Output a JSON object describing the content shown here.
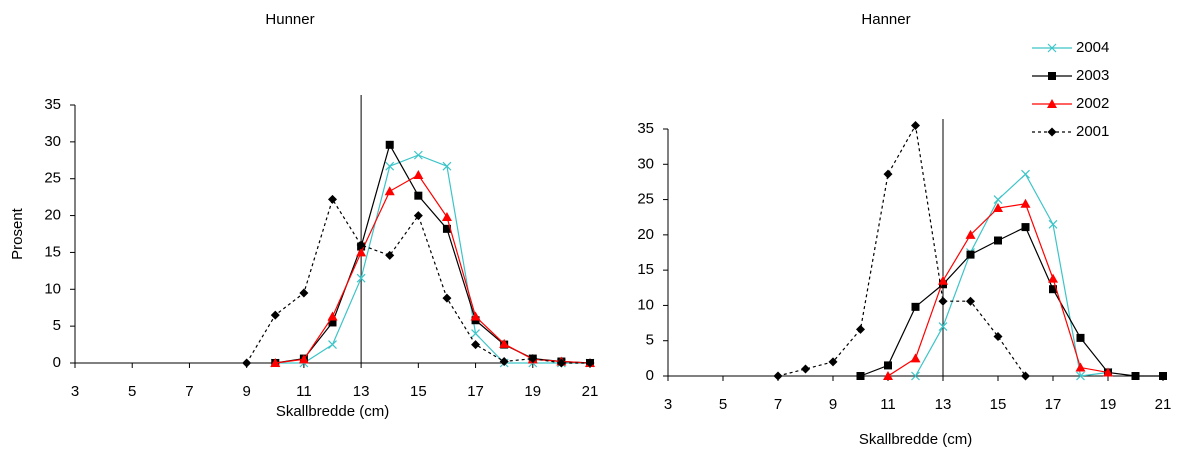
{
  "chart_data": [
    {
      "type": "line",
      "title": "Hunner",
      "xlabel": "Skallbredde (cm)",
      "ylabel": "Prosent",
      "x": [
        3,
        4,
        5,
        6,
        7,
        8,
        9,
        10,
        11,
        12,
        13,
        14,
        15,
        16,
        17,
        18,
        19,
        20,
        21
      ],
      "xlim": [
        3,
        21
      ],
      "xticks": [
        3,
        5,
        7,
        9,
        11,
        13,
        15,
        17,
        19,
        21
      ],
      "ylim": [
        0,
        35
      ],
      "yticks": [
        0,
        5,
        10,
        15,
        20,
        25,
        30,
        35
      ],
      "vline": 13,
      "series": [
        {
          "color": "#3cc4c8",
          "marker": "x",
          "dash": "solid",
          "values": [
            null,
            null,
            null,
            null,
            null,
            null,
            null,
            0,
            0,
            2.5,
            11.5,
            26.7,
            28.2,
            26.7,
            4,
            0,
            0,
            0,
            0
          ]
        },
        {
          "color": "#000000",
          "marker": "square",
          "dash": "solid",
          "values": [
            null,
            null,
            null,
            null,
            null,
            null,
            null,
            0,
            0.6,
            5.5,
            15.8,
            29.6,
            22.7,
            18.2,
            5.8,
            2.5,
            0.6,
            0.2,
            0
          ]
        },
        {
          "color": "#ff0000",
          "marker": "triangle",
          "dash": "solid",
          "values": [
            null,
            null,
            null,
            null,
            null,
            null,
            null,
            0,
            0.5,
            6.3,
            15,
            23.3,
            25.5,
            19.8,
            6.3,
            2.6,
            0.5,
            0.2,
            0
          ]
        },
        {
          "color": "#000000",
          "marker": "diamond",
          "dash": "dotted",
          "values": [
            null,
            null,
            null,
            null,
            null,
            null,
            0,
            6.5,
            9.5,
            22.2,
            16,
            14.6,
            20,
            8.8,
            2.5,
            0.2,
            0.6,
            0,
            0
          ]
        }
      ]
    },
    {
      "type": "line",
      "title": "Hanner",
      "xlabel": "Skallbredde (cm)",
      "x": [
        3,
        4,
        5,
        6,
        7,
        8,
        9,
        10,
        11,
        12,
        13,
        14,
        15,
        16,
        17,
        18,
        19,
        20,
        21
      ],
      "xlim": [
        3,
        21
      ],
      "xticks": [
        3,
        5,
        7,
        9,
        11,
        13,
        15,
        17,
        19,
        21
      ],
      "ylim": [
        0,
        35
      ],
      "yticks": [
        0,
        5,
        10,
        15,
        20,
        25,
        30,
        35
      ],
      "vline": 13,
      "legend": "top-right",
      "series": [
        {
          "name": "2004",
          "color": "#3cc4c8",
          "marker": "x",
          "dash": "solid",
          "values": [
            null,
            null,
            null,
            null,
            null,
            null,
            null,
            null,
            null,
            0,
            7,
            17.5,
            25,
            28.6,
            21.5,
            0,
            0.5,
            null,
            null
          ]
        },
        {
          "name": "2003",
          "color": "#000000",
          "marker": "square",
          "dash": "solid",
          "values": [
            null,
            null,
            null,
            null,
            null,
            null,
            null,
            0,
            1.5,
            9.8,
            13,
            17.2,
            19.2,
            21.1,
            12.3,
            5.4,
            0.5,
            0,
            0
          ]
        },
        {
          "name": "2002",
          "color": "#ff0000",
          "marker": "triangle",
          "dash": "solid",
          "values": [
            null,
            null,
            null,
            null,
            null,
            null,
            null,
            null,
            0,
            2.5,
            13.5,
            20,
            23.8,
            24.4,
            13.8,
            1.2,
            0.5,
            null,
            null
          ]
        },
        {
          "name": "2001",
          "color": "#000000",
          "marker": "diamond",
          "dash": "dotted",
          "values": [
            null,
            null,
            null,
            null,
            0,
            1,
            2,
            6.6,
            28.6,
            35.5,
            10.6,
            10.6,
            5.6,
            0,
            null,
            null,
            null,
            null,
            null
          ]
        }
      ]
    }
  ]
}
